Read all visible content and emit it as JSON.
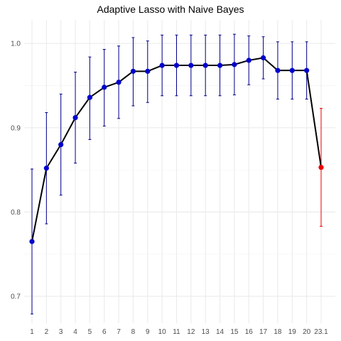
{
  "chart_data": {
    "type": "line",
    "title": "Adaptive Lasso with Naive Bayes",
    "xlabel": "",
    "ylabel": "",
    "categories": [
      "1",
      "2",
      "3",
      "4",
      "5",
      "6",
      "7",
      "8",
      "9",
      "10",
      "11",
      "12",
      "13",
      "14",
      "15",
      "16",
      "17",
      "18",
      "19",
      "20",
      "23.1"
    ],
    "series": [
      {
        "values": [
          0.765,
          0.852,
          0.88,
          0.912,
          0.936,
          0.948,
          0.954,
          0.967,
          0.967,
          0.974,
          0.974,
          0.974,
          0.974,
          0.974,
          0.975,
          0.98,
          0.983,
          0.968,
          0.968,
          0.968,
          0.853
        ],
        "error_upper": [
          0.851,
          0.918,
          0.94,
          0.966,
          0.984,
          0.993,
          0.997,
          1.007,
          1.003,
          1.01,
          1.01,
          1.01,
          1.01,
          1.01,
          1.011,
          1.009,
          1.008,
          1.002,
          1.002,
          1.002,
          0.923
        ],
        "error_lower": [
          0.679,
          0.786,
          0.82,
          0.858,
          0.886,
          0.902,
          0.911,
          0.926,
          0.93,
          0.938,
          0.938,
          0.938,
          0.938,
          0.938,
          0.939,
          0.951,
          0.958,
          0.934,
          0.934,
          0.934,
          0.783
        ],
        "point_colors": [
          "#0000cd",
          "#0000cd",
          "#0000cd",
          "#0000cd",
          "#0000cd",
          "#0000cd",
          "#0000cd",
          "#0000cd",
          "#0000cd",
          "#0000cd",
          "#0000cd",
          "#0000cd",
          "#0000cd",
          "#0000cd",
          "#0000cd",
          "#0000cd",
          "#0000cd",
          "#0000cd",
          "#0000cd",
          "#0000cd",
          "#ee0000"
        ]
      }
    ],
    "yticks": [
      0.7,
      0.8,
      0.9,
      1.0
    ],
    "yticklabels": [
      "0.7",
      "0.8",
      "0.9",
      "1.0"
    ],
    "ylim": [
      0.668,
      1.028
    ],
    "grid": true,
    "line_color": "#000000",
    "errorbar_color_default": "#00008b"
  }
}
